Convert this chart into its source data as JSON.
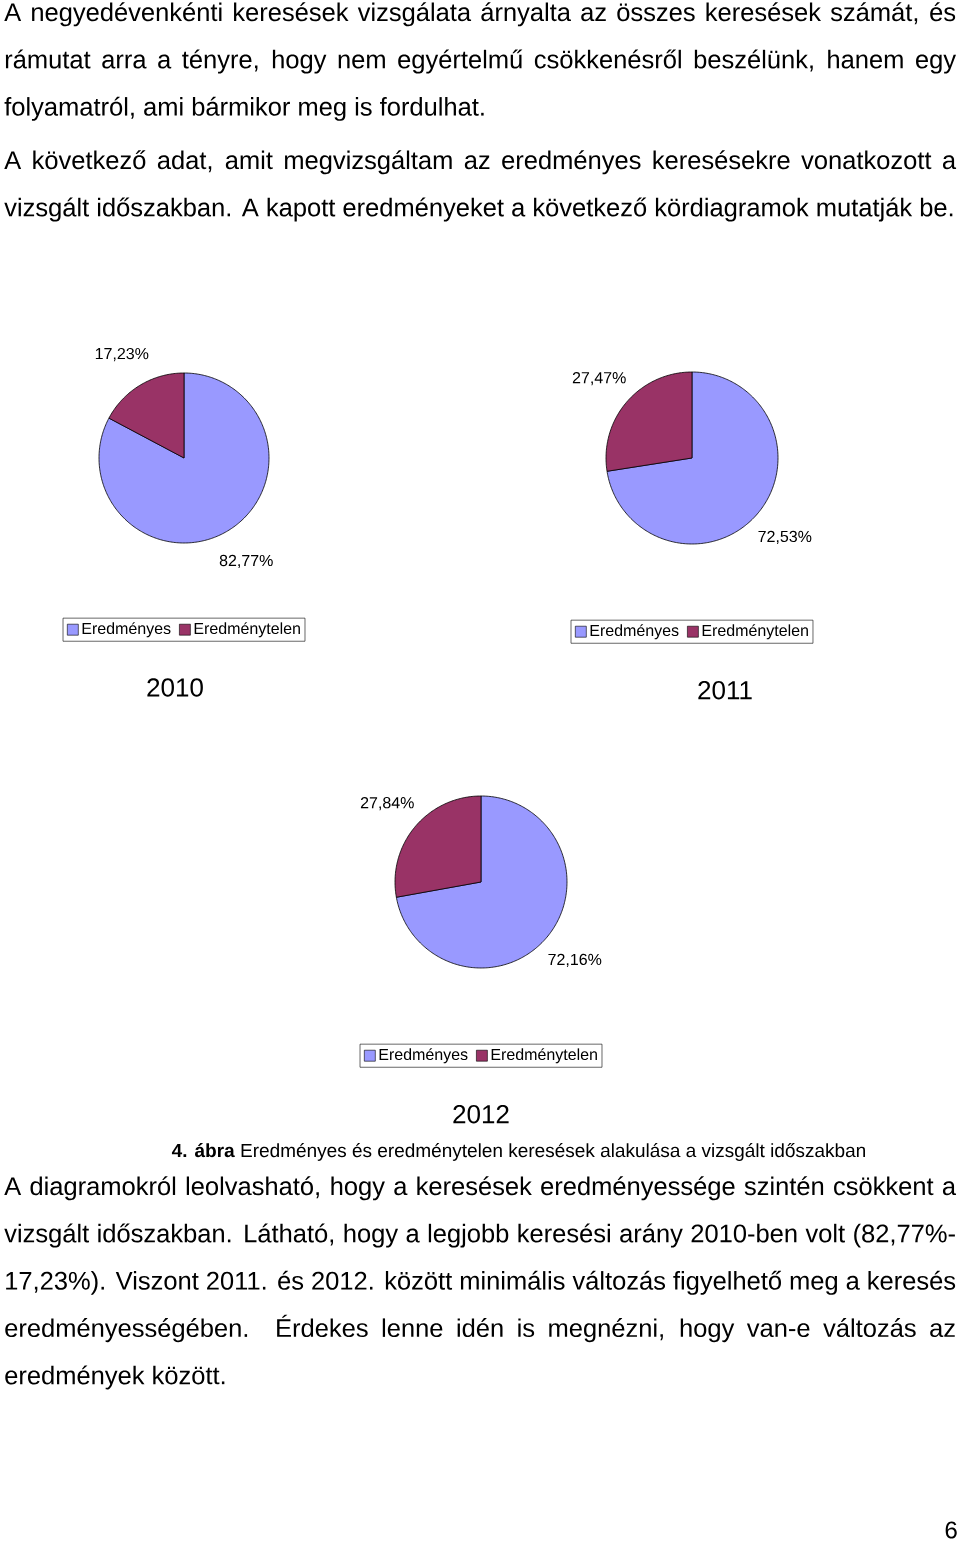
{
  "chart_data": [
    {
      "type": "pie",
      "title": "2010",
      "categories": [
        "Eredményes",
        "Eredménytelen"
      ],
      "values": [
        82.77,
        17.23
      ],
      "colors": [
        "#9999ff",
        "#993366"
      ],
      "value_labels": [
        "82,77%",
        "17,23%"
      ],
      "legend": "bottom",
      "annotations": [
        "A negyedévenkénti keresések vizsgálata árnyalta az összes keresések számát, és rámutat arra a tényre, hogy nem egyértelmű csökkenésről beszélünk, hanem egy folyamatról, ami bármikor meg is fordulhat.",
        "A következő adat, amit megvizsgáltam az eredményes keresésekre vonatkozott a vizsgált időszakban. A kapott eredményeket a következő kördiagramok mutatják be."
      ]
    },
    {
      "type": "pie",
      "title": "2011",
      "categories": [
        "Eredményes",
        "Eredménytelen"
      ],
      "values": [
        72.53,
        27.47
      ],
      "colors": [
        "#9999ff",
        "#993366"
      ],
      "value_labels": [
        "72,53%",
        "27,47%"
      ],
      "legend": "bottom"
    },
    {
      "type": "pie",
      "title": "2012",
      "categories": [
        "Eredményes",
        "Eredménytelen"
      ],
      "values": [
        72.16,
        27.84
      ],
      "colors": [
        "#9999ff",
        "#993366"
      ],
      "value_labels": [
        "72,16%",
        "27,84%"
      ],
      "legend": "bottom",
      "annotations": [
        "**4. ábra** Eredményes és eredménytelen keresések alakulása a vizsgált időszakban",
        "A diagramokról leolvasható, hogy a keresések eredményessége szintén csökkent a vizsgált időszakban. Látható, hogy a legjobb keresési arány 2010-ben volt (82,77%-17,23%). Viszont 2011. és 2012. között minimális változás figyelhető meg a keresés eredményességében. Érdekes lenne idén is megnézni, hogy van-e változás az eredmények között.",
        "6"
      ]
    }
  ]
}
